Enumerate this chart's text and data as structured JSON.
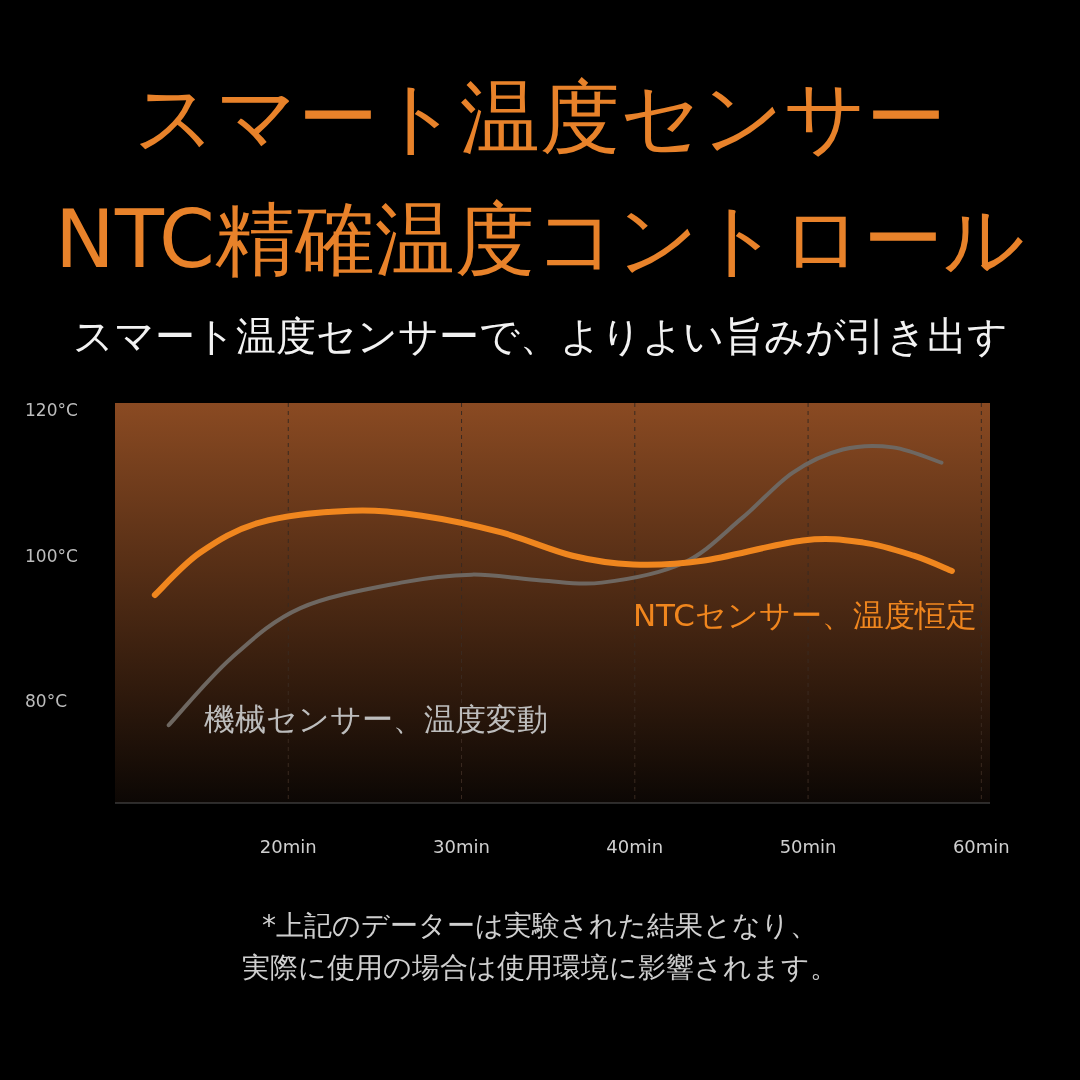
{
  "chart_data": {
    "type": "line",
    "title": "スマート温度センサー\nNTC精確温度コントロール",
    "subtitle": "スマート温度センサーで、よりよい旨みが引き出す",
    "annotations": [
      "*上記のデーターは実験された結果となり、",
      "実際に使用の場合は使用環境に影響されます。"
    ],
    "xlim": [
      10,
      60.5
    ],
    "xticks": [
      {
        "value": 20,
        "label": "20min"
      },
      {
        "value": 30,
        "label": "30min"
      },
      {
        "value": 40,
        "label": "40min"
      },
      {
        "value": 50,
        "label": "50min"
      },
      {
        "value": 60,
        "label": "60min"
      }
    ],
    "ylim": [
      66,
      121
    ],
    "yticks": [
      {
        "value": 80,
        "label": "80°C"
      },
      {
        "value": 100,
        "label": "100°C"
      },
      {
        "value": 120,
        "label": "120°C"
      }
    ],
    "grid": "x",
    "marker": "none",
    "line_style": "solid",
    "series": [
      {
        "name": "NTCセンサー、温度恒定",
        "color": "#f0861e",
        "x": [
          12.3,
          14.9,
          18.4,
          23.6,
          27.7,
          32.3,
          36.4,
          39.9,
          43.9,
          49.7,
          53.2,
          56.1,
          58.3
        ],
        "values": [
          94.6,
          100.4,
          104.6,
          106.2,
          105.5,
          103.2,
          100,
          98.8,
          99.3,
          102.1,
          101.8,
          100,
          97.9
        ]
      },
      {
        "name": "機械センサー、温度変動",
        "color": "#6e6761",
        "x": [
          13.1,
          16.7,
          20.7,
          26.5,
          30.6,
          34.6,
          38.1,
          42.8,
          46.2,
          49.1,
          52.0,
          54.9,
          57.7
        ],
        "values": [
          76.7,
          85.9,
          92.8,
          96.3,
          97.4,
          96.6,
          96.3,
          99,
          105.2,
          111.4,
          114.6,
          114.9,
          112.8
        ]
      }
    ]
  }
}
